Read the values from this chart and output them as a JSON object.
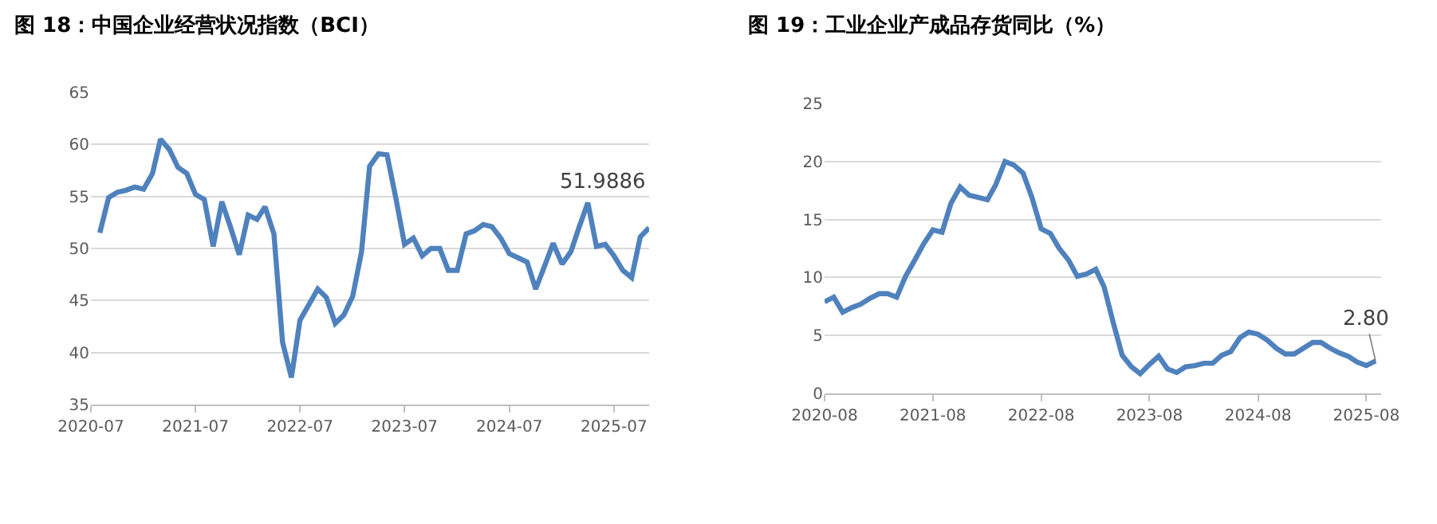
{
  "chart_data": [
    {
      "type": "line",
      "title": "图 18：中国企业经营状况指数（BCI）",
      "x": [
        "2020-08",
        "2020-09",
        "2020-10",
        "2020-11",
        "2020-12",
        "2021-01",
        "2021-02",
        "2021-03",
        "2021-04",
        "2021-05",
        "2021-06",
        "2021-07",
        "2021-08",
        "2021-09",
        "2021-10",
        "2021-11",
        "2021-12",
        "2022-01",
        "2022-02",
        "2022-03",
        "2022-04",
        "2022-05",
        "2022-06",
        "2022-07",
        "2022-08",
        "2022-09",
        "2022-10",
        "2022-11",
        "2022-12",
        "2023-01",
        "2023-02",
        "2023-03",
        "2023-04",
        "2023-05",
        "2023-06",
        "2023-07",
        "2023-08",
        "2023-09",
        "2023-10",
        "2023-11",
        "2023-12",
        "2024-01",
        "2024-02",
        "2024-03",
        "2024-04",
        "2024-05",
        "2024-06",
        "2024-07",
        "2024-08",
        "2024-09",
        "2024-10",
        "2024-11",
        "2024-12",
        "2025-01",
        "2025-02",
        "2025-03",
        "2025-04",
        "2025-05",
        "2025-06",
        "2025-07",
        "2025-08",
        "2025-09",
        "2025-10",
        "2025-11"
      ],
      "series": [
        {
          "color": "#4f81bd",
          "values": [
            51.5,
            54.9,
            55.4,
            55.6,
            55.9,
            55.7,
            57.2,
            60.5,
            59.5,
            57.8,
            57.2,
            55.2,
            54.7,
            50.2,
            54.5,
            52.0,
            49.4,
            53.2,
            52.8,
            54.0,
            51.4,
            41.0,
            37.6,
            43.1,
            44.6,
            46.1,
            45.3,
            42.8,
            43.6,
            45.4,
            49.7,
            57.9,
            59.1,
            59.0,
            54.8,
            50.4,
            51.0,
            49.3,
            50.0,
            50.0,
            47.9,
            47.9,
            51.4,
            51.7,
            52.3,
            52.1,
            51.0,
            49.5,
            49.1,
            48.7,
            46.1,
            48.3,
            50.5,
            48.5,
            49.7,
            52.0,
            54.4,
            50.2,
            50.4,
            49.3,
            47.9,
            47.2,
            51.1,
            51.9886
          ]
        }
      ],
      "xlim": [
        "2020-07",
        "2025-11"
      ],
      "xticks": [
        "2020-07",
        "2021-07",
        "2022-07",
        "2023-07",
        "2024-07",
        "2025-07"
      ],
      "ylim": [
        35,
        65
      ],
      "yticks": [
        35,
        40,
        45,
        50,
        55,
        60,
        65
      ],
      "grid": "y",
      "marker": "none",
      "line_style": "solid",
      "annotations": [
        {
          "text": "51.9886",
          "x": "2025-11",
          "y": 51.9886
        }
      ]
    },
    {
      "type": "line",
      "title": "图 19：工业企业产成品存货同比（%）",
      "x": [
        "2020-08",
        "2020-09",
        "2020-10",
        "2020-11",
        "2020-12",
        "2021-01",
        "2021-02",
        "2021-03",
        "2021-04",
        "2021-05",
        "2021-06",
        "2021-07",
        "2021-08",
        "2021-09",
        "2021-10",
        "2021-11",
        "2021-12",
        "2022-01",
        "2022-02",
        "2022-03",
        "2022-04",
        "2022-05",
        "2022-06",
        "2022-07",
        "2022-08",
        "2022-09",
        "2022-10",
        "2022-11",
        "2022-12",
        "2023-01",
        "2023-02",
        "2023-03",
        "2023-04",
        "2023-05",
        "2023-06",
        "2023-07",
        "2023-08",
        "2023-09",
        "2023-10",
        "2023-11",
        "2023-12",
        "2024-01",
        "2024-02",
        "2024-03",
        "2024-04",
        "2024-05",
        "2024-06",
        "2024-07",
        "2024-08",
        "2024-09",
        "2024-10",
        "2024-11",
        "2024-12",
        "2025-01",
        "2025-02",
        "2025-03",
        "2025-04",
        "2025-05",
        "2025-06",
        "2025-07",
        "2025-08",
        "2025-09"
      ],
      "series": [
        {
          "color": "#4f81bd",
          "values": [
            7.9,
            8.3,
            7.0,
            7.4,
            7.7,
            8.2,
            8.6,
            8.6,
            8.3,
            10.1,
            11.5,
            12.9,
            14.1,
            13.9,
            16.4,
            17.8,
            17.1,
            16.9,
            16.7,
            18.0,
            20.0,
            19.7,
            19.0,
            16.9,
            14.2,
            13.8,
            12.5,
            11.5,
            10.1,
            10.3,
            10.7,
            9.2,
            6.1,
            3.3,
            2.3,
            1.7,
            2.5,
            3.2,
            2.1,
            1.8,
            2.3,
            2.4,
            2.6,
            2.6,
            3.3,
            3.6,
            4.8,
            5.3,
            5.1,
            4.6,
            3.9,
            3.4,
            3.4,
            3.9,
            4.4,
            4.4,
            3.9,
            3.5,
            3.2,
            2.7,
            2.4,
            2.8
          ]
        }
      ],
      "xlim": [
        "2020-08",
        "2025-09-20"
      ],
      "xticks": [
        "2020-08",
        "2021-08",
        "2022-08",
        "2023-08",
        "2024-08",
        "2025-08"
      ],
      "ylim": [
        0,
        25
      ],
      "yticks": [
        0,
        5,
        10,
        15,
        20,
        25
      ],
      "grid": "y",
      "marker": "none",
      "line_style": "solid",
      "annotations": [
        {
          "text": "2.80",
          "x": "2025-09",
          "y": 2.8
        }
      ]
    }
  ]
}
